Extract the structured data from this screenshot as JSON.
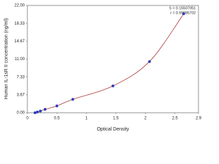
{
  "chart_data": {
    "type": "scatter",
    "x_label": "Optical Density",
    "y_label": "Human IL-1sR II concentration (ng/ml)",
    "annotations": [
      "S = 0.15507051",
      "r = 0.99985702"
    ],
    "series": [
      {
        "color": "#2c3cb8",
        "x": [
          0.13,
          0.17,
          0.22,
          0.3,
          0.5,
          0.77,
          1.45,
          2.07,
          2.65
        ],
        "values": [
          0,
          0.15,
          0.35,
          0.7,
          1.4,
          2.75,
          5.5,
          10.5,
          20.3
        ]
      }
    ],
    "curve_color": "#a83232",
    "xlim": [
      0,
      2.9
    ],
    "xticks": [
      0,
      0.5,
      1,
      1.5,
      2,
      2.5,
      2.9
    ],
    "ylim": [
      0,
      22
    ],
    "yticks": [
      {
        "value": 0,
        "label": "0.00"
      },
      3.67,
      7.33,
      {
        "value": 11,
        "label": "11.00"
      },
      14.67,
      18.33,
      {
        "value": 22,
        "label": "22.00"
      }
    ],
    "grid": false
  }
}
